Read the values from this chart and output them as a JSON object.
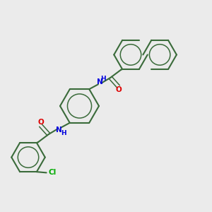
{
  "background_color": "#ebebeb",
  "bond_color": "#3a6b3a",
  "atom_colors": {
    "N": "#0000dd",
    "O": "#dd0000",
    "Cl": "#00aa00",
    "C": "#3a6b3a"
  },
  "figsize": [
    3.0,
    3.0
  ],
  "dpi": 100,
  "xlim": [
    0,
    12
  ],
  "ylim": [
    0,
    12
  ]
}
